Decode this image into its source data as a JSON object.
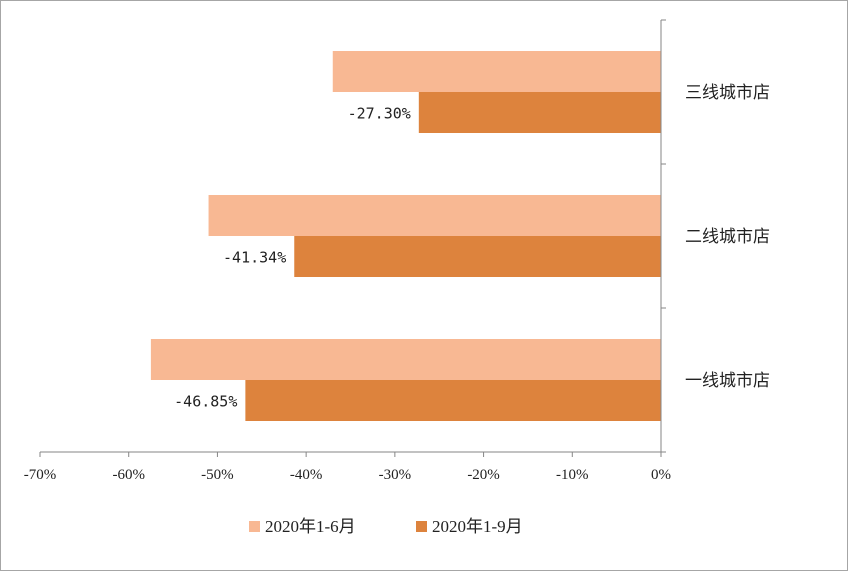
{
  "chart_data": {
    "type": "bar",
    "orientation": "horizontal",
    "categories": [
      "一线城市店",
      "二线城市店",
      "三线城市店"
    ],
    "series": [
      {
        "name": "2020年1-6月",
        "color": "#f8b893",
        "values": [
          -57.5,
          -51.0,
          -37.0
        ]
      },
      {
        "name": "2020年1-9月",
        "color": "#dd833d",
        "values": [
          -46.85,
          -41.34,
          -27.3
        ]
      }
    ],
    "data_labels": {
      "2020年1-9月": [
        "-46.85%",
        "-41.34%",
        "-27.30%"
      ]
    },
    "xlim": [
      -70,
      0
    ],
    "xticks": [
      -70,
      -60,
      -50,
      -40,
      -30,
      -20,
      -10,
      0
    ],
    "xtick_labels": [
      "-70%",
      "-60%",
      "-50%",
      "-40%",
      "-30%",
      "-20%",
      "-10%",
      "0%"
    ],
    "title": "",
    "xlabel": "",
    "ylabel": "",
    "grid": false,
    "legend": "bottom",
    "category_axis": "right"
  }
}
